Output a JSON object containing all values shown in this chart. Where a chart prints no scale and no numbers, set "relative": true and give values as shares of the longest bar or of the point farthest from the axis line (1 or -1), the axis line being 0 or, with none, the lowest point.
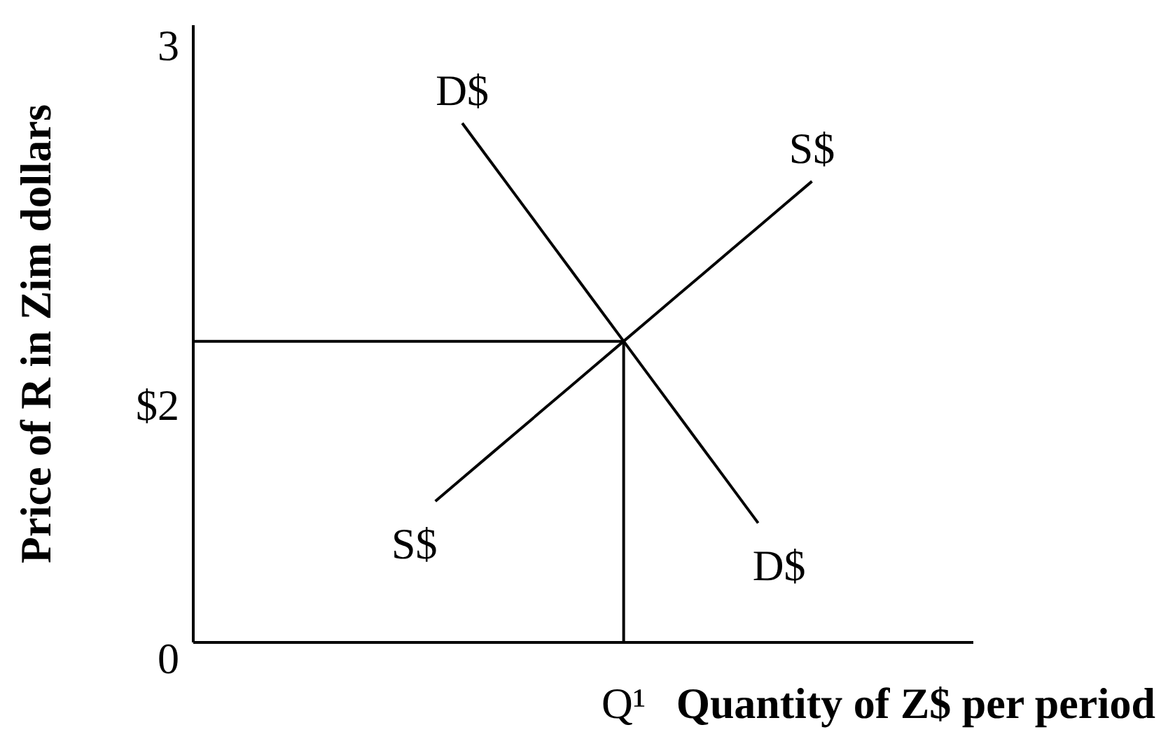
{
  "chart_data": {
    "type": "line",
    "relative": true,
    "xlabel": "Quantity of Z$ per period",
    "ylabel": "Price of R in Zim dollars",
    "annotations": [
      "3",
      "$2",
      "0",
      "Q¹"
    ],
    "categories": [
      null,
      null,
      null,
      null,
      null,
      null,
      null,
      null,
      null,
      null,
      null,
      null,
      null,
      null,
      null,
      null,
      null,
      null,
      null,
      null,
      null,
      null,
      null,
      null,
      null,
      null,
      null,
      null,
      null,
      null
    ],
    "series": [
      {
        "name": "D$",
        "color": "#000000",
        "values": [
          null,
          null,
          null,
          null,
          null,
          null,
          null,
          null,
          null,
          null,
          1,
          0.93,
          0.86,
          0.79,
          0.72,
          0.65,
          0.58,
          0.51,
          0.44,
          0.37,
          0.3,
          0.23,
          null,
          null,
          null,
          null,
          null,
          null,
          null,
          null
        ]
      },
      {
        "name": "S$",
        "color": "#000000",
        "values": [
          null,
          null,
          null,
          null,
          null,
          null,
          null,
          null,
          null,
          0.272,
          0.316,
          0.36,
          0.404,
          0.448,
          0.492,
          0.536,
          0.58,
          0.624,
          0.668,
          0.712,
          0.756,
          0.8,
          0.844,
          0.888,
          null,
          null,
          null,
          null,
          null,
          null
        ]
      },
      {
        "type": "step",
        "color": "#000000",
        "values": [
          0.58,
          0.58,
          0.58,
          0.58,
          0.58,
          0.58,
          0.58,
          0.58,
          0.58,
          0.58,
          0.58,
          0.58,
          0.58,
          0.58,
          0.58,
          0.58,
          0,
          null,
          null,
          null,
          null,
          null,
          null,
          null,
          null,
          null,
          null,
          null,
          null,
          null
        ]
      }
    ]
  }
}
